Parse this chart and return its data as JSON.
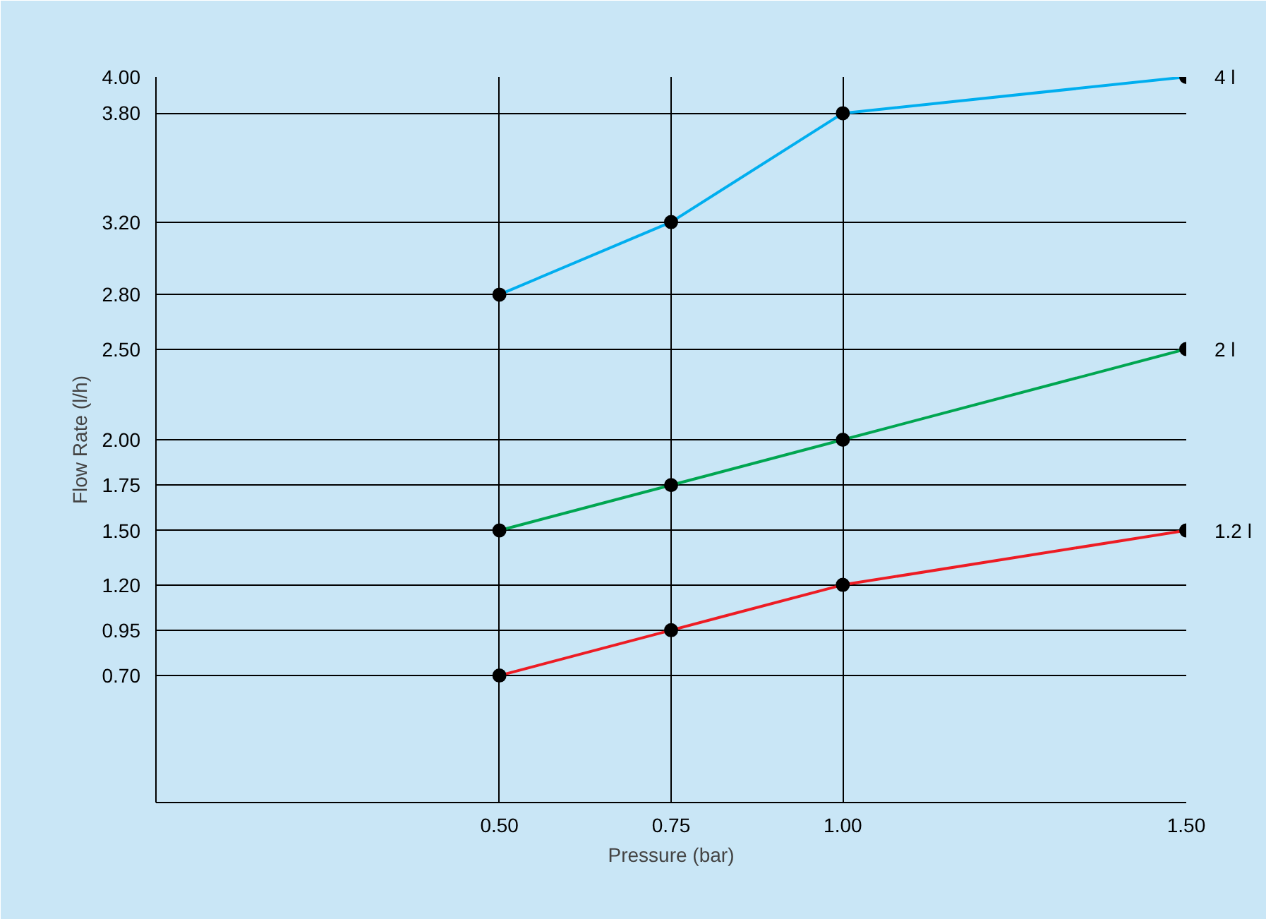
{
  "chart_data": {
    "type": "line",
    "xlabel": "Pressure (bar)",
    "ylabel": "Flow Rate (l/h)",
    "x": [
      0.5,
      0.75,
      1.0,
      1.5
    ],
    "series": [
      {
        "name": "4 l",
        "color": "#00aeef",
        "values": [
          2.8,
          3.2,
          3.8,
          4.0
        ]
      },
      {
        "name": "2 l",
        "color": "#00a651",
        "values": [
          1.5,
          1.75,
          2.0,
          2.5
        ]
      },
      {
        "name": "1.2 l",
        "color": "#ed1c24",
        "values": [
          0.7,
          0.95,
          1.2,
          1.5
        ]
      }
    ],
    "xlim": [
      0,
      1.5
    ],
    "ylim": [
      0,
      4.0
    ],
    "xticks": [
      {
        "value": 0.5,
        "label": "0.50"
      },
      {
        "value": 0.75,
        "label": "0.75"
      },
      {
        "value": 1.0,
        "label": "1.00"
      },
      {
        "value": 1.5,
        "label": "1.50"
      }
    ],
    "yticks": [
      {
        "value": 0.7,
        "label": "0.70"
      },
      {
        "value": 0.95,
        "label": "0.95"
      },
      {
        "value": 1.2,
        "label": "1.20"
      },
      {
        "value": 1.5,
        "label": "1.50"
      },
      {
        "value": 1.75,
        "label": "1.75"
      },
      {
        "value": 2.0,
        "label": "2.00"
      },
      {
        "value": 2.5,
        "label": "2.50"
      },
      {
        "value": 2.8,
        "label": "2.80"
      },
      {
        "value": 3.2,
        "label": "3.20"
      },
      {
        "value": 3.8,
        "label": "3.80"
      },
      {
        "value": 4.0,
        "label": "4.00"
      }
    ],
    "grid": true,
    "marker": "circle",
    "line_style": "solid"
  }
}
